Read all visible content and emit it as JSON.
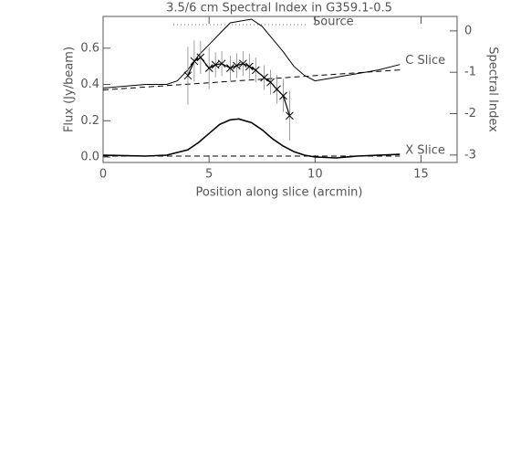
{
  "chart_data": {
    "type": "line",
    "title": "3.5/6 cm Spectral Index in G359.1-0.5",
    "xlabel": "Position along slice (arcmin)",
    "ylabel": "Flux (Jy/beam)",
    "y2label": "Spectral Index",
    "annotation": "Source",
    "xlim": [
      0,
      16.7
    ],
    "ylim": [
      -0.03,
      0.775
    ],
    "y2lim": [
      -3.18,
      0.35
    ],
    "xticks": [
      0,
      5,
      10,
      15
    ],
    "yticks": [
      {
        "value": 0,
        "label": "0.0"
      },
      {
        "value": 0.2,
        "label": "0.2"
      },
      {
        "value": 0.4,
        "label": "0.4"
      },
      {
        "value": 0.6,
        "label": "0.6"
      }
    ],
    "y2ticks": [
      0,
      -1,
      -2,
      -3
    ],
    "series": [
      {
        "name": "C Slice",
        "color": "#000000",
        "width": 1,
        "x": [
          0,
          1,
          2,
          3,
          3.5,
          4,
          4.5,
          5,
          5.5,
          6,
          6.5,
          7,
          7.5,
          8,
          8.5,
          9,
          9.5,
          10,
          10.5,
          11,
          12,
          13,
          14
        ],
        "values": [
          0.38,
          0.39,
          0.4,
          0.4,
          0.42,
          0.48,
          0.56,
          0.62,
          0.68,
          0.74,
          0.75,
          0.76,
          0.72,
          0.65,
          0.58,
          0.5,
          0.45,
          0.42,
          0.43,
          0.44,
          0.46,
          0.48,
          0.51
        ]
      },
      {
        "name": "X Slice",
        "color": "#000000",
        "width": 1.6,
        "x": [
          0,
          2,
          3,
          4,
          4.5,
          5,
          5.5,
          6,
          6.4,
          7,
          7.5,
          8,
          8.5,
          9,
          9.5,
          10,
          11,
          12,
          13,
          14
        ],
        "values": [
          0.01,
          0.005,
          0.01,
          0.04,
          0.08,
          0.13,
          0.18,
          0.205,
          0.21,
          0.19,
          0.15,
          0.1,
          0.06,
          0.03,
          0.01,
          0.0,
          -0.005,
          0.005,
          0.01,
          0.015
        ]
      },
      {
        "color": "#000000",
        "width": 1,
        "dashed": true,
        "x": [
          0,
          14
        ],
        "values": [
          0.37,
          0.48
        ]
      },
      {
        "color": "#000000",
        "width": 1,
        "dashed": true,
        "x": [
          0,
          14
        ],
        "values": [
          0.005,
          0.005
        ]
      },
      {
        "color": "#000000",
        "width": 1.2,
        "axis": "y2",
        "markers": true,
        "x": [
          4.0,
          4.3,
          4.6,
          5.0,
          5.3,
          5.6,
          6.0,
          6.3,
          6.6,
          6.9,
          7.2,
          7.6,
          7.9,
          8.2,
          8.5,
          8.8
        ],
        "values": [
          -1.08,
          -0.73,
          -0.64,
          -0.9,
          -0.82,
          -0.79,
          -0.9,
          -0.84,
          -0.79,
          -0.86,
          -0.95,
          -1.13,
          -1.24,
          -1.41,
          -1.57,
          -2.05
        ],
        "errors": [
          0.7,
          0.5,
          0.4,
          0.5,
          0.3,
          0.3,
          0.3,
          0.3,
          0.3,
          0.3,
          0.3,
          0.3,
          0.3,
          0.35,
          0.4,
          0.6
        ]
      }
    ]
  }
}
